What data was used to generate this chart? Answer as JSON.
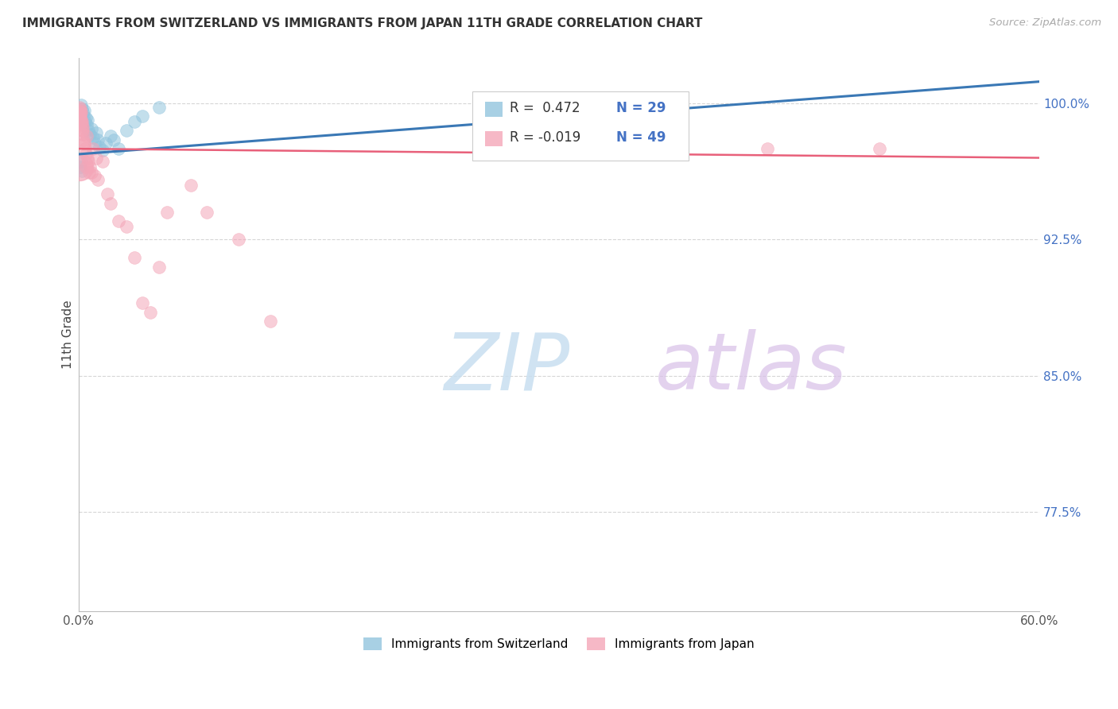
{
  "title": "IMMIGRANTS FROM SWITZERLAND VS IMMIGRANTS FROM JAPAN 11TH GRADE CORRELATION CHART",
  "source": "Source: ZipAtlas.com",
  "ylabel": "11th Grade",
  "xlim": [
    0.0,
    60.0
  ],
  "ylim": [
    72.0,
    102.5
  ],
  "yticks": [
    77.5,
    85.0,
    92.5,
    100.0
  ],
  "ytick_labels": [
    "77.5%",
    "85.0%",
    "92.5%",
    "100.0%"
  ],
  "xticks": [
    0.0,
    10.0,
    20.0,
    30.0,
    40.0,
    50.0,
    60.0
  ],
  "legend_R_switzerland": "R =  0.472",
  "legend_N_switzerland": "N = 29",
  "legend_R_japan": "R = -0.019",
  "legend_N_japan": "N = 49",
  "color_switzerland": "#92c5de",
  "color_japan": "#f4a6b8",
  "color_trendline_switzerland": "#3a78b5",
  "color_trendline_japan": "#e8607a",
  "color_ytick_labels": "#4472C4",
  "color_title": "#333333",
  "background_color": "#ffffff",
  "grid_color": "#cccccc",
  "switzerland_x": [
    0.15,
    0.2,
    0.25,
    0.3,
    0.35,
    0.4,
    0.45,
    0.5,
    0.55,
    0.6,
    0.7,
    0.8,
    0.9,
    1.0,
    1.1,
    1.2,
    1.3,
    1.5,
    1.7,
    2.0,
    2.2,
    2.5,
    3.0,
    3.5,
    4.0,
    5.0,
    0.1,
    0.15,
    0.2
  ],
  "switzerland_y": [
    99.9,
    99.7,
    99.5,
    99.3,
    99.6,
    99.0,
    99.2,
    98.8,
    99.1,
    98.5,
    98.3,
    98.6,
    98.1,
    97.8,
    98.4,
    98.0,
    97.6,
    97.4,
    97.8,
    98.2,
    98.0,
    97.5,
    98.5,
    99.0,
    99.3,
    99.8,
    96.5,
    96.8,
    96.3
  ],
  "japan_x": [
    0.08,
    0.1,
    0.12,
    0.15,
    0.18,
    0.2,
    0.22,
    0.25,
    0.28,
    0.3,
    0.35,
    0.4,
    0.45,
    0.5,
    0.55,
    0.6,
    0.7,
    0.8,
    0.9,
    1.0,
    1.1,
    1.2,
    1.5,
    1.8,
    2.0,
    2.5,
    3.0,
    3.5,
    4.0,
    4.5,
    5.0,
    5.5,
    7.0,
    8.0,
    10.0,
    12.0,
    43.0,
    50.0,
    0.06,
    0.08,
    0.1,
    0.12,
    0.15,
    0.18,
    0.22,
    0.28,
    0.35,
    0.45,
    0.65
  ],
  "japan_y": [
    99.8,
    99.5,
    99.2,
    98.9,
    99.1,
    98.5,
    99.0,
    98.3,
    98.7,
    98.0,
    97.8,
    97.5,
    97.2,
    98.2,
    97.0,
    96.8,
    96.5,
    96.2,
    97.5,
    96.0,
    97.0,
    95.8,
    96.8,
    95.0,
    94.5,
    93.5,
    93.2,
    91.5,
    89.0,
    88.5,
    91.0,
    94.0,
    95.5,
    94.0,
    92.5,
    88.0,
    97.5,
    97.5,
    99.6,
    99.3,
    99.7,
    99.4,
    99.0,
    99.5,
    98.8,
    98.5,
    97.8,
    96.5,
    96.2
  ],
  "trendline_switzerland_x0": 0.0,
  "trendline_switzerland_x1": 60.0,
  "trendline_switzerland_y0": 97.2,
  "trendline_switzerland_y1": 101.2,
  "trendline_japan_x0": 0.0,
  "trendline_japan_x1": 60.0,
  "trendline_japan_y0": 97.5,
  "trendline_japan_y1": 97.0,
  "watermark_zip_color": "#c8dff0",
  "watermark_atlas_color": "#d8c8e8"
}
